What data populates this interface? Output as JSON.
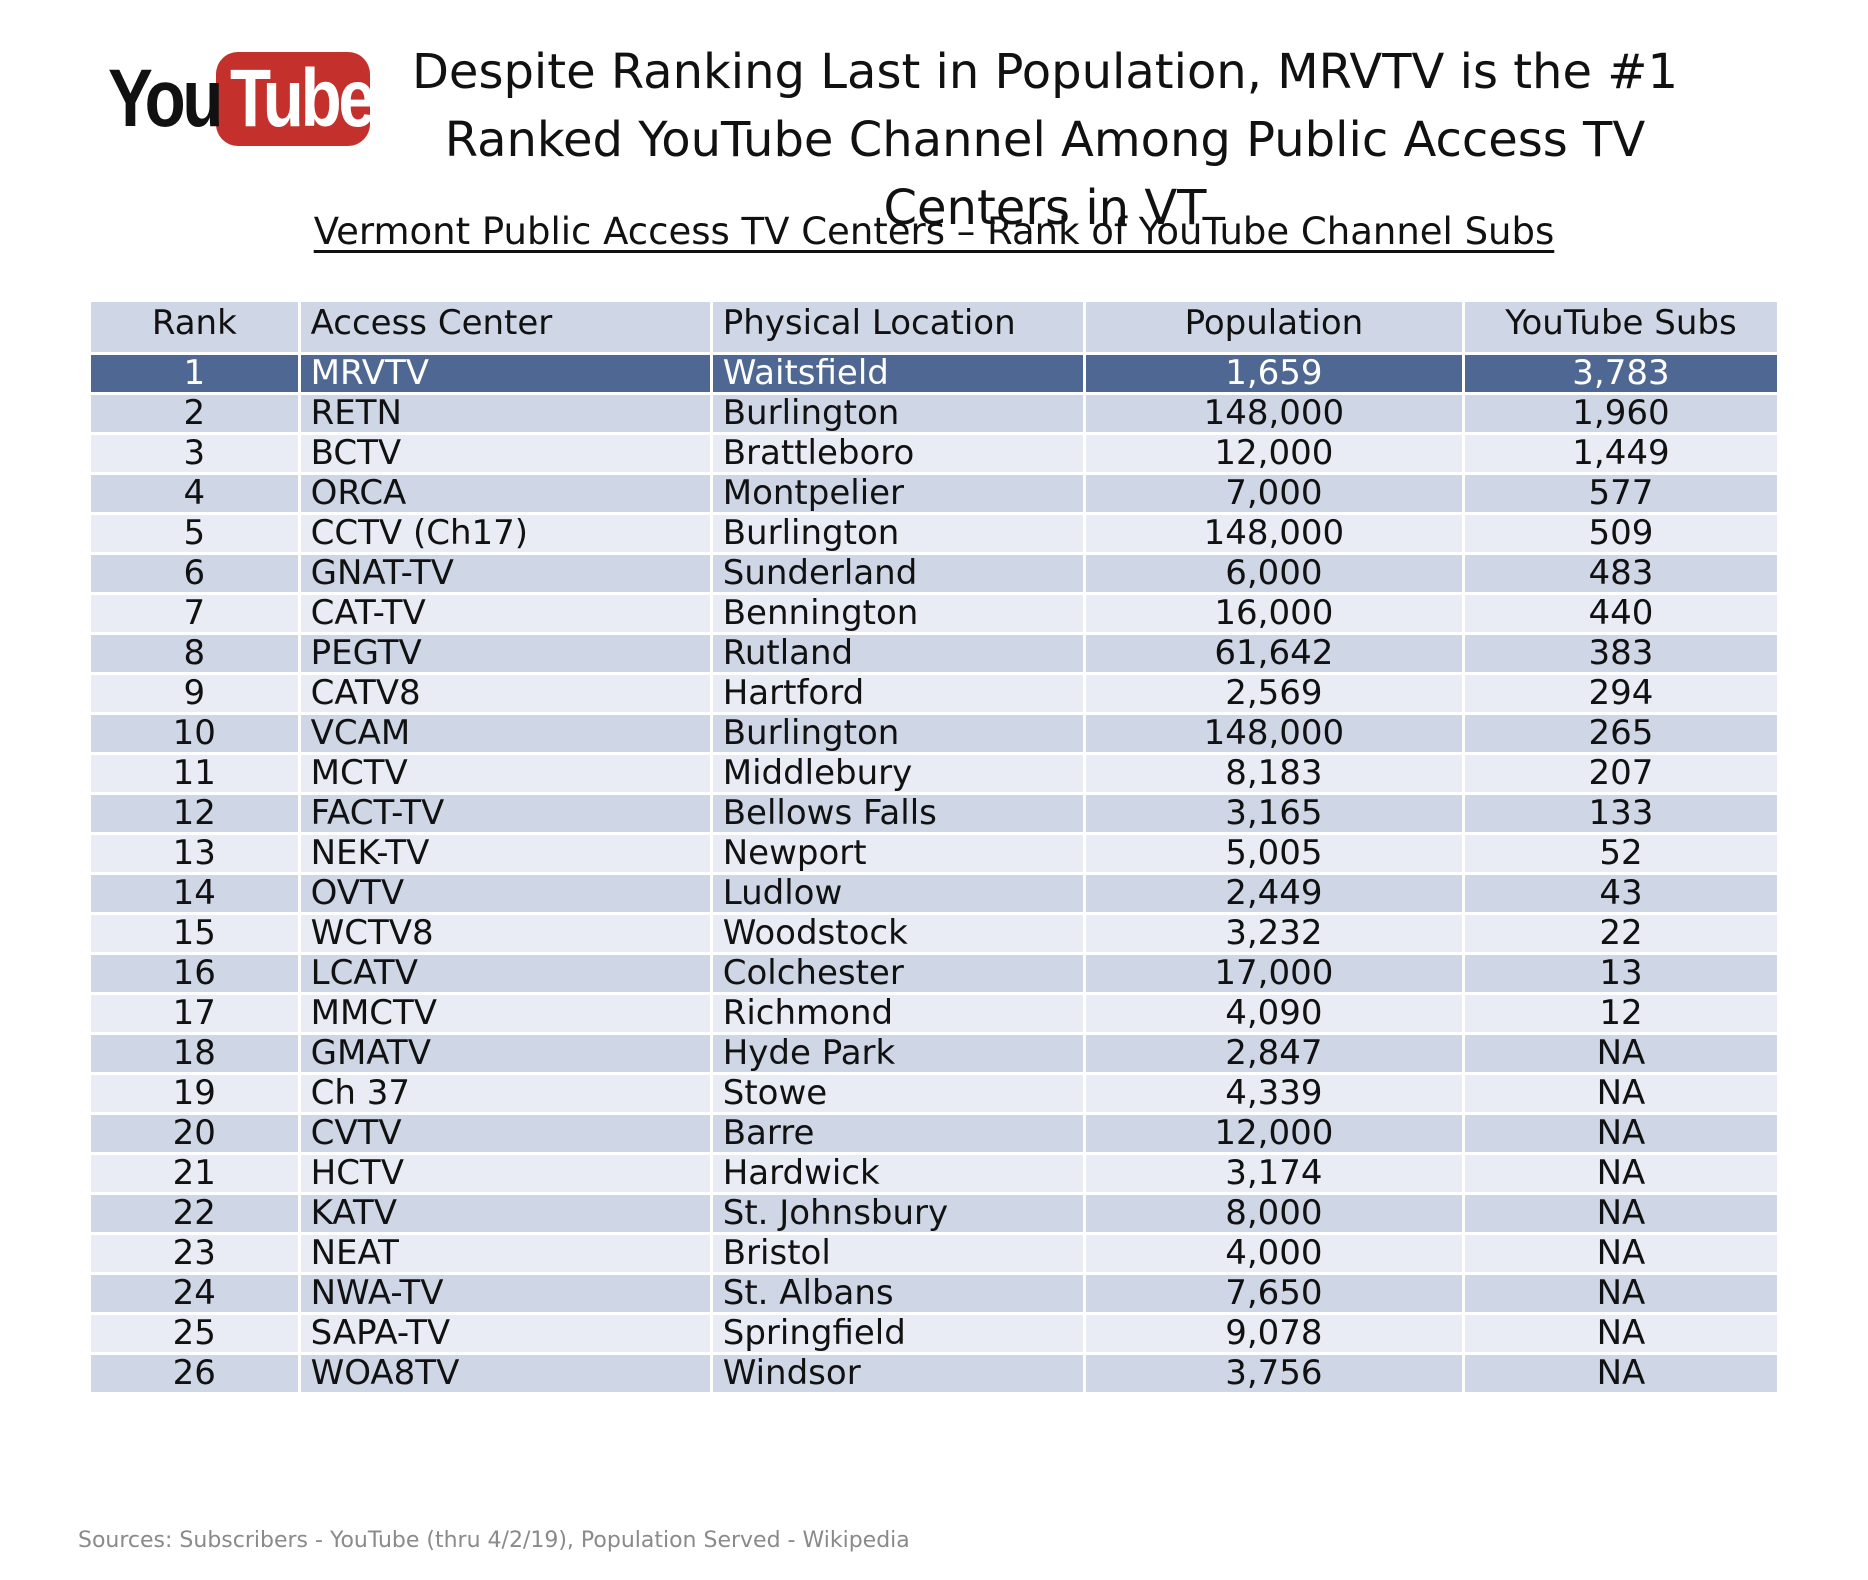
{
  "logo": {
    "you": "You",
    "tube": "Tube",
    "colors": {
      "red": "#c4302b",
      "text": "#111111"
    }
  },
  "title": "Despite Ranking Last in Population, MRVTV is the #1 Ranked YouTube Channel Among Public Access TV Centers in VT",
  "subtitle": "Vermont Public Access TV Centers – Rank of YouTube Channel Subs",
  "footer": "Sources: Subscribers - YouTube (thru 4/2/19), Population Served - Wikipedia",
  "colors": {
    "header_bg": "#cfd6e5",
    "band_dark": "#cfd6e5",
    "band_light": "#e9ecf4",
    "highlight": "#4f6793"
  },
  "chart_data": {
    "type": "table",
    "highlight_row": 0,
    "columns": [
      "Rank",
      "Access Center",
      "Physical Location",
      "Population",
      "YouTube Subs"
    ],
    "rows": [
      [
        "1",
        "MRVTV",
        "Waitsfield",
        "1,659",
        "3,783"
      ],
      [
        "2",
        "RETN",
        "Burlington",
        "148,000",
        "1,960"
      ],
      [
        "3",
        "BCTV",
        "Brattleboro",
        "12,000",
        "1,449"
      ],
      [
        "4",
        "ORCA",
        "Montpelier",
        "7,000",
        "577"
      ],
      [
        "5",
        "CCTV (Ch17)",
        "Burlington",
        "148,000",
        "509"
      ],
      [
        "6",
        "GNAT-TV",
        "Sunderland",
        "6,000",
        "483"
      ],
      [
        "7",
        "CAT-TV",
        "Bennington",
        "16,000",
        "440"
      ],
      [
        "8",
        "PEGTV",
        "Rutland",
        "61,642",
        "383"
      ],
      [
        "9",
        "CATV8",
        "Hartford",
        "2,569",
        "294"
      ],
      [
        "10",
        "VCAM",
        "Burlington",
        "148,000",
        "265"
      ],
      [
        "11",
        "MCTV",
        "Middlebury",
        "8,183",
        "207"
      ],
      [
        "12",
        "FACT-TV",
        "Bellows Falls",
        "3,165",
        "133"
      ],
      [
        "13",
        "NEK-TV",
        "Newport",
        "5,005",
        "52"
      ],
      [
        "14",
        "OVTV",
        "Ludlow",
        "2,449",
        "43"
      ],
      [
        "15",
        "WCTV8",
        "Woodstock",
        "3,232",
        "22"
      ],
      [
        "16",
        "LCATV",
        "Colchester",
        "17,000",
        "13"
      ],
      [
        "17",
        "MMCTV",
        "Richmond",
        "4,090",
        "12"
      ],
      [
        "18",
        "GMATV",
        "Hyde Park",
        "2,847",
        "NA"
      ],
      [
        "19",
        "Ch 37",
        "Stowe",
        "4,339",
        "NA"
      ],
      [
        "20",
        "CVTV",
        "Barre",
        "12,000",
        "NA"
      ],
      [
        "21",
        "HCTV",
        "Hardwick",
        "3,174",
        "NA"
      ],
      [
        "22",
        "KATV",
        "St. Johnsbury",
        "8,000",
        "NA"
      ],
      [
        "23",
        "NEAT",
        "Bristol",
        "4,000",
        "NA"
      ],
      [
        "24",
        "NWA-TV",
        "St. Albans",
        "7,650",
        "NA"
      ],
      [
        "25",
        "SAPA-TV",
        "Springfield",
        "9,078",
        "NA"
      ],
      [
        "26",
        "WOA8TV",
        "Windsor",
        "3,756",
        "NA"
      ]
    ]
  }
}
